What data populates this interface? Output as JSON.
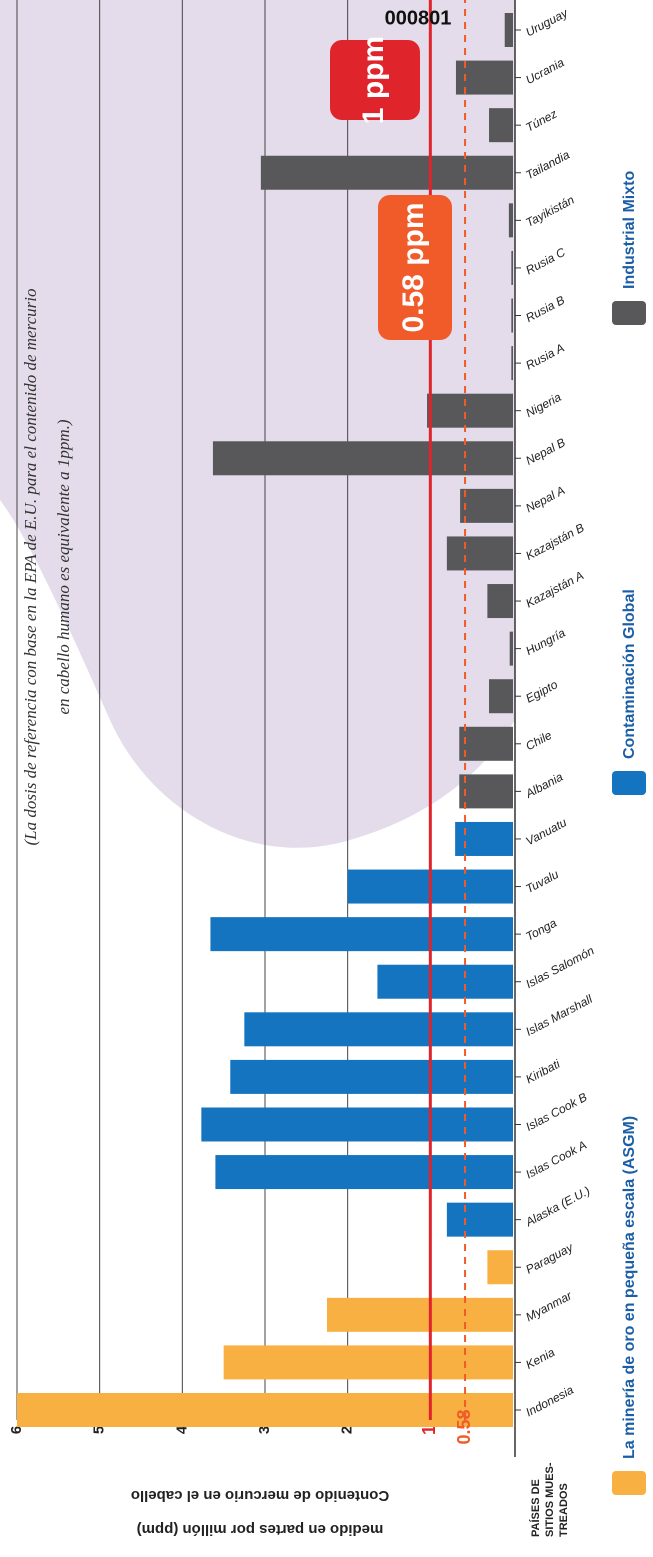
{
  "chart_data": {
    "type": "bar",
    "id_label": "000801",
    "subtitle": [
      "(La dosis de referencia con base en la EPA de E.U. para el contenido de mercurio",
      "en cabello humano es equivalente a 1ppm.)"
    ],
    "y_label": [
      "Contenido de mercurio en el cabello",
      "medido en partes por millón  (ppm)"
    ],
    "x_label": [
      "PAÍSES DE",
      "SITIOS MUES-",
      "TREADOS"
    ],
    "categories": [
      "Indonesia",
      "Kenia",
      "Myanmar",
      "Paraguay",
      "Alaska (E.U.)",
      "Islas Cook A",
      "Islas Cook B",
      "Kiribati",
      "Islas Marshall",
      "Islas Salomón",
      "Tonga",
      "Tuvalu",
      "Vanuatu",
      "Albania",
      "Chile",
      "Egipto",
      "Hungría",
      "Kazajstán A",
      "Kazajstán B",
      "Nepal A",
      "Nepal B",
      "Nigeria",
      "Rusia A",
      "Rusia B",
      "Rusia C",
      "Tayikistán",
      "Tailandia",
      "Túnez",
      "Ucrania",
      "Uruguay"
    ],
    "series": [
      {
        "name": "La minería de oro en pequeña escala (ASGM)",
        "color": "#f9b042",
        "values": [
          6.0,
          3.5,
          2.25,
          0.31,
          null,
          null,
          null,
          null,
          null,
          null,
          null,
          null,
          null,
          null,
          null,
          null,
          null,
          null,
          null,
          null,
          null,
          null,
          null,
          null,
          null,
          null,
          null,
          null,
          null,
          null
        ]
      },
      {
        "name": "Contaminación Global",
        "color": "#1574bf",
        "values": [
          null,
          null,
          null,
          null,
          0.8,
          3.6,
          3.77,
          3.42,
          3.25,
          1.64,
          3.66,
          2.0,
          0.7,
          null,
          null,
          null,
          null,
          null,
          null,
          null,
          null,
          null,
          null,
          null,
          null,
          null,
          null,
          null,
          null,
          null
        ]
      },
      {
        "name": "Industrial Mixto",
        "color": "#58585a",
        "values": [
          null,
          null,
          null,
          null,
          null,
          null,
          null,
          null,
          null,
          null,
          null,
          null,
          null,
          0.65,
          0.65,
          0.29,
          0.04,
          0.31,
          0.8,
          0.64,
          3.63,
          1.04,
          0.02,
          0.02,
          0.02,
          0.05,
          3.05,
          0.29,
          0.69,
          0.1
        ]
      }
    ],
    "ylim": [
      0,
      6
    ],
    "yticks": [
      1,
      2,
      3,
      4,
      5,
      6
    ],
    "grid": true,
    "reference_lines": [
      {
        "value": 1,
        "label": "1 ppm",
        "color": "#e0242b",
        "dash": false
      },
      {
        "value": 0.58,
        "label": "0.58 ppm",
        "color": "#f15a29",
        "dash": true
      }
    ]
  }
}
